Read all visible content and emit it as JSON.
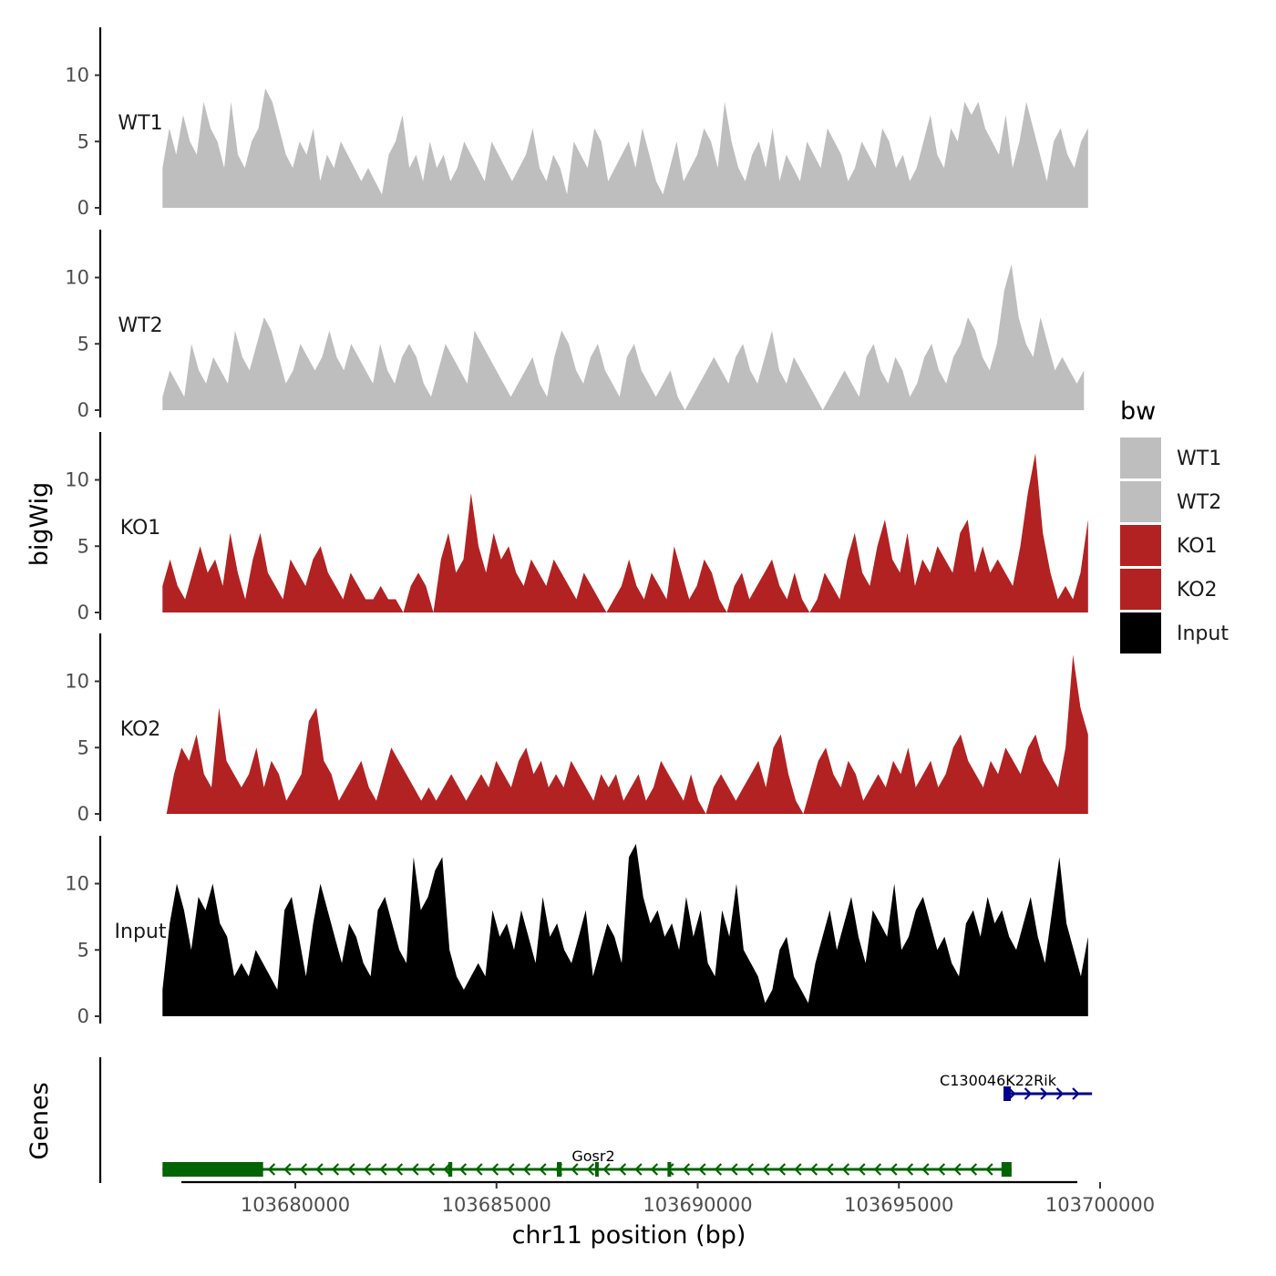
{
  "chart_data": {
    "type": "area",
    "ylabel": "bigWig",
    "xlabel": "chr11 position (bp)",
    "x_range": [
      103676500,
      103699900
    ],
    "ylim": [
      0,
      13.5
    ],
    "yticks": [
      0,
      5,
      10
    ],
    "xticks": [
      103680000,
      103685000,
      103690000,
      103695000,
      103700000
    ],
    "xtick_labels": [
      "103680000",
      "103685000",
      "103690000",
      "103695000",
      "103700000"
    ],
    "tracks": [
      {
        "name": "WT1",
        "color": "#bebebe",
        "start": 103676700,
        "end": 103699700,
        "values": [
          3,
          6,
          4,
          7,
          5,
          4,
          8,
          6,
          5,
          3,
          8,
          4,
          3,
          5,
          6,
          9,
          8,
          6,
          4,
          3,
          5,
          4,
          6,
          2,
          4,
          3,
          5,
          4,
          3,
          2,
          3,
          2,
          1,
          4,
          5,
          7,
          3,
          4,
          2,
          5,
          3,
          4,
          2,
          3,
          5,
          4,
          3,
          2,
          5,
          4,
          3,
          2,
          3,
          4,
          6,
          3,
          2,
          4,
          3,
          1,
          5,
          4,
          3,
          6,
          5,
          2,
          3,
          4,
          5,
          3,
          6,
          4,
          2,
          1,
          3,
          5,
          2,
          3,
          4,
          6,
          5,
          3,
          8,
          5,
          3,
          2,
          4,
          5,
          3,
          6,
          2,
          4,
          3,
          2,
          5,
          4,
          3,
          6,
          5,
          4,
          2,
          3,
          5,
          4,
          3,
          6,
          5,
          3,
          4,
          2,
          3,
          5,
          7,
          4,
          3,
          6,
          5,
          8,
          7,
          8,
          6,
          5,
          4,
          7,
          3,
          5,
          8,
          6,
          4,
          2,
          5,
          6,
          4,
          3,
          5,
          6
        ]
      },
      {
        "name": "WT2",
        "color": "#bebebe",
        "start": 103676700,
        "end": 103699600,
        "values": [
          1,
          3,
          2,
          1,
          5,
          3,
          2,
          4,
          3,
          2,
          6,
          4,
          3,
          5,
          7,
          6,
          4,
          2,
          3,
          5,
          4,
          3,
          4,
          6,
          4,
          3,
          5,
          4,
          3,
          2,
          5,
          3,
          2,
          4,
          5,
          4,
          2,
          1,
          3,
          5,
          4,
          3,
          2,
          6,
          5,
          4,
          3,
          2,
          1,
          2,
          3,
          4,
          2,
          1,
          4,
          6,
          5,
          3,
          2,
          4,
          5,
          3,
          2,
          1,
          4,
          5,
          3,
          2,
          1,
          2,
          3,
          1,
          0,
          1,
          2,
          3,
          4,
          3,
          2,
          4,
          5,
          3,
          2,
          4,
          6,
          3,
          2,
          4,
          3,
          2,
          1,
          0,
          1,
          2,
          3,
          2,
          1,
          4,
          5,
          3,
          2,
          4,
          3,
          1,
          2,
          4,
          5,
          3,
          2,
          4,
          5,
          7,
          6,
          4,
          3,
          5,
          9,
          11,
          7,
          5,
          4,
          7,
          5,
          3,
          4,
          3,
          2,
          3
        ]
      },
      {
        "name": "KO1",
        "color": "#b22222",
        "start": 103676700,
        "end": 103699700,
        "values": [
          2,
          4,
          2,
          1,
          3,
          5,
          3,
          4,
          2,
          6,
          3,
          1,
          4,
          6,
          3,
          2,
          1,
          4,
          3,
          2,
          4,
          5,
          3,
          2,
          1,
          3,
          2,
          1,
          1,
          2,
          1,
          1,
          0,
          2,
          3,
          2,
          0,
          4,
          6,
          3,
          4,
          9,
          5,
          3,
          6,
          4,
          5,
          3,
          2,
          4,
          3,
          2,
          4,
          3,
          2,
          1,
          3,
          2,
          1,
          0,
          1,
          2,
          4,
          2,
          1,
          3,
          2,
          1,
          5,
          3,
          1,
          2,
          4,
          3,
          1,
          0,
          2,
          3,
          1,
          2,
          3,
          4,
          2,
          1,
          3,
          1,
          0,
          1,
          3,
          2,
          1,
          4,
          6,
          3,
          2,
          5,
          7,
          4,
          3,
          6,
          2,
          4,
          3,
          5,
          4,
          3,
          6,
          7,
          3,
          5,
          3,
          4,
          3,
          2,
          5,
          9,
          12,
          6,
          3,
          1,
          2,
          1,
          3,
          7
        ]
      },
      {
        "name": "KO2",
        "color": "#b22222",
        "start": 103676800,
        "end": 103699700,
        "values": [
          0,
          3,
          5,
          4,
          6,
          3,
          2,
          8,
          4,
          3,
          2,
          3,
          5,
          2,
          4,
          3,
          1,
          2,
          3,
          7,
          8,
          4,
          3,
          1,
          2,
          3,
          4,
          2,
          1,
          3,
          5,
          4,
          3,
          2,
          1,
          2,
          1,
          2,
          3,
          2,
          1,
          2,
          3,
          2,
          4,
          3,
          2,
          4,
          5,
          3,
          4,
          2,
          3,
          2,
          4,
          3,
          2,
          1,
          3,
          2,
          3,
          1,
          2,
          3,
          1,
          2,
          4,
          3,
          2,
          1,
          3,
          1,
          0,
          2,
          3,
          2,
          1,
          2,
          3,
          4,
          2,
          5,
          6,
          3,
          1,
          0,
          2,
          4,
          5,
          3,
          2,
          4,
          3,
          1,
          2,
          3,
          2,
          4,
          3,
          5,
          2,
          3,
          4,
          2,
          3,
          5,
          6,
          4,
          3,
          2,
          4,
          3,
          5,
          4,
          3,
          5,
          6,
          4,
          3,
          2,
          5,
          12,
          8,
          6
        ]
      },
      {
        "name": "Input",
        "color": "#000000",
        "start": 103676700,
        "end": 103699700,
        "values": [
          2,
          7,
          10,
          8,
          5,
          9,
          8,
          10,
          7,
          6,
          3,
          4,
          3,
          5,
          4,
          3,
          2,
          8,
          9,
          6,
          3,
          7,
          10,
          8,
          6,
          4,
          7,
          6,
          4,
          3,
          8,
          9,
          7,
          5,
          4,
          12,
          8,
          9,
          11,
          12,
          5,
          3,
          2,
          3,
          4,
          3,
          8,
          6,
          7,
          5,
          8,
          6,
          4,
          9,
          6,
          7,
          5,
          4,
          6,
          8,
          3,
          5,
          7,
          6,
          4,
          12,
          13,
          9,
          7,
          8,
          6,
          7,
          5,
          9,
          6,
          8,
          4,
          3,
          8,
          6,
          10,
          5,
          4,
          3,
          1,
          2,
          5,
          6,
          3,
          2,
          1,
          4,
          6,
          8,
          5,
          7,
          9,
          6,
          4,
          8,
          7,
          6,
          10,
          5,
          6,
          8,
          9,
          7,
          5,
          6,
          4,
          3,
          7,
          8,
          6,
          9,
          7,
          8,
          6,
          5,
          7,
          9,
          6,
          4,
          8,
          12,
          7,
          5,
          3,
          6
        ]
      }
    ],
    "genes": [
      {
        "name": "Gosr2",
        "color": "#006400",
        "strand": "-",
        "start": 103676700,
        "end": 103697800,
        "exons": [
          [
            103676700,
            103679200
          ],
          [
            103683800,
            103683900
          ],
          [
            103686500,
            103686620
          ],
          [
            103687450,
            103687530
          ],
          [
            103689250,
            103689290
          ],
          [
            103697550,
            103697800
          ]
        ]
      },
      {
        "name": "C130046K22Rik",
        "color": "#00008b",
        "strand": "+",
        "start": 103697600,
        "end": 103699800,
        "exons": [
          [
            103697600,
            103697780
          ]
        ]
      }
    ],
    "legend": {
      "title": "bw",
      "entries": [
        "WT1",
        "WT2",
        "KO1",
        "KO2",
        "Input"
      ],
      "colors": [
        "#bebebe",
        "#bebebe",
        "#b22222",
        "#b22222",
        "#000000"
      ]
    },
    "gene_panel_label": "Genes"
  }
}
